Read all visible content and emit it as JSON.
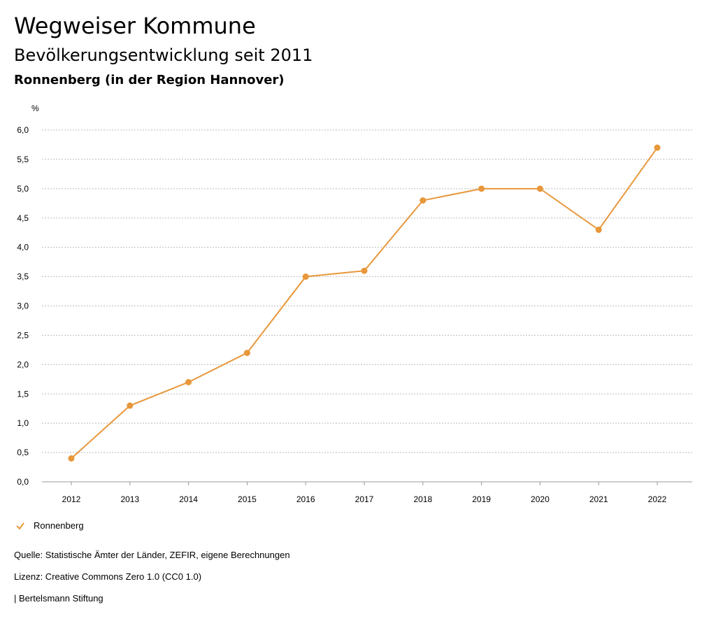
{
  "header": {
    "title": "Wegweiser Kommune",
    "subtitle": "Bevölkerungsentwicklung seit 2011",
    "region": "Ronnenberg (in der Region Hannover)"
  },
  "legend": {
    "label": "Ronnenberg"
  },
  "footer": {
    "source": "Quelle: Statistische Ämter der Länder, ZEFIR, eigene Berechnungen",
    "license": "Lizenz: Creative Commons Zero 1.0 (CC0 1.0)",
    "publisher": "| Bertelsmann Stiftung"
  },
  "colors": {
    "series": "#e8973a",
    "grid": "#bbbbbb"
  },
  "chart_data": {
    "type": "line",
    "ylabel": "%",
    "xlabel": "",
    "ylim": [
      0,
      6
    ],
    "grid": true,
    "legend_position": "bottom-left",
    "categories": [
      "2012",
      "2013",
      "2014",
      "2015",
      "2016",
      "2017",
      "2018",
      "2019",
      "2020",
      "2021",
      "2022"
    ],
    "yticks": [
      "0,0",
      "0,5",
      "1,0",
      "1,5",
      "2,0",
      "2,5",
      "3,0",
      "3,5",
      "4,0",
      "4,5",
      "5,0",
      "5,5",
      "6,0"
    ],
    "series": [
      {
        "name": "Ronnenberg",
        "values": [
          0.4,
          1.3,
          1.7,
          2.2,
          3.5,
          3.6,
          4.8,
          5.0,
          5.0,
          4.3,
          5.7
        ]
      }
    ]
  }
}
